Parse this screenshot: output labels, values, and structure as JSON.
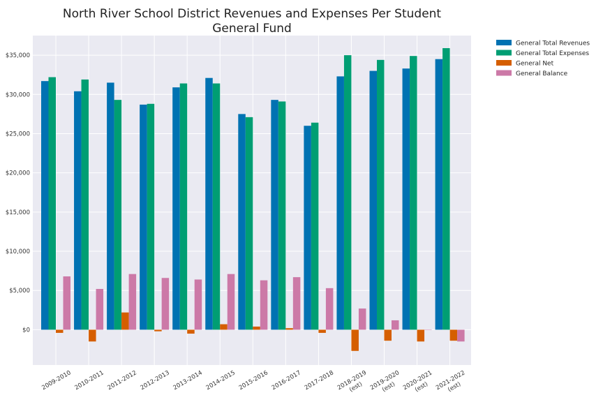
{
  "chart_data": {
    "type": "bar",
    "title": "North River School District Revenues and Expenses Per Student",
    "subtitle": "General Fund",
    "xlabel": "",
    "ylabel": "",
    "ylim": [
      -4500,
      37500
    ],
    "yticks": [
      0,
      5000,
      10000,
      15000,
      20000,
      25000,
      30000,
      35000
    ],
    "ytick_labels": [
      "$0",
      "$5,000",
      "$10,000",
      "$15,000",
      "$20,000",
      "$25,000",
      "$30,000",
      "$35,000"
    ],
    "grid": true,
    "legend_position": "outside top-right",
    "categories": [
      [
        "2009-2010"
      ],
      [
        "2010-2011"
      ],
      [
        "2011-2012"
      ],
      [
        "2012-2013"
      ],
      [
        "2013-2014"
      ],
      [
        "2014-2015"
      ],
      [
        "2015-2016"
      ],
      [
        "2016-2017"
      ],
      [
        "2017-2018"
      ],
      [
        "2018-2019",
        "(est)"
      ],
      [
        "2019-2020",
        "(est)"
      ],
      [
        "2020-2021",
        "(est)"
      ],
      [
        "2021-2022",
        "(est)"
      ]
    ],
    "series": [
      {
        "name": "General Total Revenues",
        "color": "#0072b2",
        "values": [
          31700,
          30400,
          31500,
          28700,
          30900,
          32100,
          27500,
          29300,
          26000,
          32300,
          33000,
          33300,
          34500
        ]
      },
      {
        "name": "General Total Expenses",
        "color": "#009e73",
        "values": [
          32200,
          31900,
          29300,
          28800,
          31400,
          31400,
          27100,
          29100,
          26400,
          35000,
          34400,
          34900,
          35900
        ]
      },
      {
        "name": "General Net",
        "color": "#d55e00",
        "values": [
          -400,
          -1500,
          2200,
          -200,
          -500,
          700,
          400,
          200,
          -400,
          -2700,
          -1400,
          -1500,
          -1400
        ]
      },
      {
        "name": "General Balance",
        "color": "#cc79a7",
        "values": [
          6800,
          5200,
          7100,
          6600,
          6400,
          7100,
          6300,
          6700,
          5300,
          2700,
          1200,
          0,
          -1500
        ]
      }
    ]
  }
}
